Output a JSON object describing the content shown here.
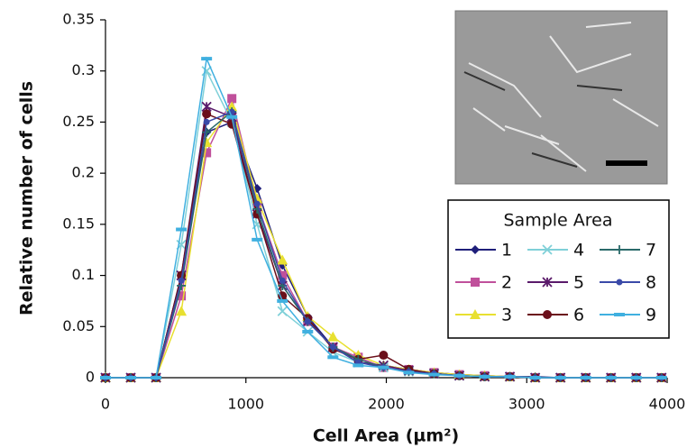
{
  "chart_data": {
    "type": "line",
    "xlabel": "Cell Area (µm²)",
    "ylabel": "Relative number of cells",
    "legend_title": "Sample Area",
    "legend": "upper right",
    "xlim": [
      0,
      4000
    ],
    "xticks": [
      0,
      1000,
      2000,
      3000,
      4000
    ],
    "ylim": [
      0,
      0.35
    ],
    "yticks": [
      0,
      0.05,
      0.1,
      0.15,
      0.2,
      0.25,
      0.3,
      0.35
    ],
    "x": [
      0,
      180,
      360,
      540,
      720,
      900,
      1080,
      1260,
      1440,
      1620,
      1800,
      1980,
      2160,
      2340,
      2520,
      2700,
      2880,
      3060,
      3240,
      3420,
      3600,
      3780,
      3960
    ],
    "series": [
      {
        "name": "1",
        "color": "#1f1f7a",
        "marker": "diamond",
        "values": [
          0,
          0,
          0,
          0.1,
          0.24,
          0.25,
          0.185,
          0.11,
          0.06,
          0.03,
          0.015,
          0.012,
          0.008,
          0.005,
          0.003,
          0.002,
          0.001,
          0.001,
          0,
          0,
          0,
          0,
          0
        ]
      },
      {
        "name": "2",
        "color": "#c0509b",
        "marker": "square",
        "values": [
          0,
          0,
          0,
          0.08,
          0.22,
          0.273,
          0.17,
          0.1,
          0.055,
          0.03,
          0.02,
          0.01,
          0.008,
          0.005,
          0.003,
          0.002,
          0.001,
          0,
          0,
          0,
          0,
          0,
          0
        ]
      },
      {
        "name": "3",
        "color": "#e8e030",
        "marker": "triangle",
        "values": [
          0,
          0,
          0,
          0.065,
          0.23,
          0.265,
          0.175,
          0.115,
          0.06,
          0.04,
          0.022,
          0.012,
          0.008,
          0.005,
          0.003,
          0.002,
          0.001,
          0,
          0,
          0,
          0,
          0,
          0
        ]
      },
      {
        "name": "4",
        "color": "#7fd0d8",
        "marker": "x",
        "values": [
          0,
          0,
          0,
          0.13,
          0.3,
          0.25,
          0.15,
          0.065,
          0.045,
          0.025,
          0.015,
          0.01,
          0.006,
          0.004,
          0.002,
          0.001,
          0.001,
          0,
          0,
          0,
          0,
          0,
          0
        ]
      },
      {
        "name": "5",
        "color": "#5a1a6a",
        "marker": "star",
        "values": [
          0,
          0,
          0,
          0.1,
          0.265,
          0.255,
          0.16,
          0.09,
          0.055,
          0.03,
          0.015,
          0.012,
          0.007,
          0.004,
          0.002,
          0.001,
          0.001,
          0,
          0,
          0,
          0,
          0,
          0
        ]
      },
      {
        "name": "6",
        "color": "#6b0f1a",
        "marker": "circle",
        "values": [
          0,
          0,
          0,
          0.1,
          0.258,
          0.248,
          0.16,
          0.08,
          0.058,
          0.028,
          0.018,
          0.022,
          0.008,
          0.004,
          0.002,
          0.001,
          0.001,
          0,
          0,
          0,
          0,
          0,
          0
        ]
      },
      {
        "name": "7",
        "color": "#2a6a6a",
        "marker": "plus",
        "values": [
          0,
          0,
          0,
          0.09,
          0.24,
          0.26,
          0.165,
          0.09,
          0.055,
          0.03,
          0.018,
          0.01,
          0.006,
          0.004,
          0.002,
          0.001,
          0.001,
          0,
          0,
          0,
          0,
          0,
          0
        ]
      },
      {
        "name": "8",
        "color": "#3a4aa8",
        "marker": "dot",
        "values": [
          0,
          0,
          0,
          0.095,
          0.25,
          0.26,
          0.17,
          0.095,
          0.055,
          0.03,
          0.015,
          0.01,
          0.006,
          0.004,
          0.002,
          0.001,
          0.001,
          0,
          0,
          0,
          0,
          0,
          0
        ]
      },
      {
        "name": "9",
        "color": "#40b0e0",
        "marker": "dash",
        "values": [
          0,
          0,
          0,
          0.145,
          0.312,
          0.255,
          0.135,
          0.075,
          0.045,
          0.02,
          0.012,
          0.01,
          0.005,
          0.003,
          0.002,
          0.001,
          0.001,
          0,
          0,
          0,
          0,
          0,
          0
        ]
      }
    ]
  }
}
